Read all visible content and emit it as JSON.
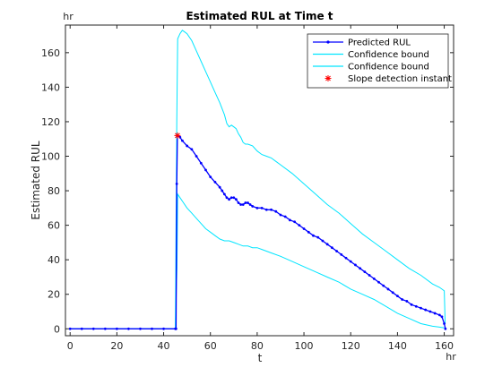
{
  "chart_data": {
    "type": "line",
    "title": "Estimated RUL at Time t",
    "xlabel": "t",
    "ylabel": "Estimated RUL",
    "x_unit": "hr",
    "y_unit": "hr",
    "xlim": [
      -2,
      164
    ],
    "ylim": [
      -4,
      176
    ],
    "xticks": [
      0,
      20,
      40,
      60,
      80,
      100,
      120,
      140,
      160
    ],
    "yticks": [
      0,
      20,
      40,
      60,
      80,
      100,
      120,
      140,
      160
    ],
    "grid": false,
    "legend_location": "top-right",
    "colors": {
      "predicted": "#0000ff",
      "bound": "#00e5ff",
      "marker": "#ff0000",
      "axes": "#262626"
    },
    "series": [
      {
        "name": "Predicted RUL",
        "style": "line-dot-markers",
        "points": [
          [
            0,
            0
          ],
          [
            5,
            0
          ],
          [
            10,
            0
          ],
          [
            15,
            0
          ],
          [
            20,
            0
          ],
          [
            25,
            0
          ],
          [
            30,
            0
          ],
          [
            35,
            0
          ],
          [
            40,
            0
          ],
          [
            45,
            0
          ],
          [
            45.3,
            0
          ],
          [
            45.6,
            84
          ],
          [
            45.9,
            112
          ],
          [
            47,
            111
          ],
          [
            48,
            109
          ],
          [
            50,
            106
          ],
          [
            52,
            104
          ],
          [
            54,
            100
          ],
          [
            56,
            96
          ],
          [
            58,
            92
          ],
          [
            60,
            88
          ],
          [
            62,
            85
          ],
          [
            64,
            82
          ],
          [
            65,
            80
          ],
          [
            66,
            78
          ],
          [
            67,
            76
          ],
          [
            68,
            75
          ],
          [
            69,
            76
          ],
          [
            70,
            76
          ],
          [
            71,
            75
          ],
          [
            72,
            73
          ],
          [
            73,
            72
          ],
          [
            74,
            72
          ],
          [
            75,
            73
          ],
          [
            76,
            73
          ],
          [
            77,
            72
          ],
          [
            78,
            71
          ],
          [
            80,
            70
          ],
          [
            82,
            70
          ],
          [
            84,
            69
          ],
          [
            86,
            69
          ],
          [
            88,
            68
          ],
          [
            90,
            66
          ],
          [
            92,
            65
          ],
          [
            94,
            63
          ],
          [
            96,
            62
          ],
          [
            98,
            60
          ],
          [
            100,
            58
          ],
          [
            102,
            56
          ],
          [
            104,
            54
          ],
          [
            106,
            53
          ],
          [
            108,
            51
          ],
          [
            110,
            49
          ],
          [
            112,
            47
          ],
          [
            114,
            45
          ],
          [
            116,
            43
          ],
          [
            118,
            41
          ],
          [
            120,
            39
          ],
          [
            122,
            37
          ],
          [
            124,
            35
          ],
          [
            126,
            33
          ],
          [
            128,
            31
          ],
          [
            130,
            29
          ],
          [
            132,
            27
          ],
          [
            134,
            25
          ],
          [
            136,
            23
          ],
          [
            138,
            21
          ],
          [
            140,
            19
          ],
          [
            142,
            17
          ],
          [
            144,
            16
          ],
          [
            146,
            14
          ],
          [
            148,
            13
          ],
          [
            150,
            12
          ],
          [
            152,
            11
          ],
          [
            154,
            10
          ],
          [
            156,
            9
          ],
          [
            158,
            8
          ],
          [
            159,
            7
          ],
          [
            160,
            3
          ],
          [
            160.5,
            0
          ]
        ]
      },
      {
        "name": "Confidence bound",
        "style": "line",
        "points": [
          [
            0,
            0
          ],
          [
            10,
            0
          ],
          [
            20,
            0
          ],
          [
            30,
            0
          ],
          [
            40,
            0
          ],
          [
            45,
            0
          ],
          [
            45.4,
            20
          ],
          [
            45.7,
            35
          ],
          [
            46,
            78
          ],
          [
            47,
            76
          ],
          [
            48,
            74
          ],
          [
            50,
            70
          ],
          [
            52,
            67
          ],
          [
            54,
            64
          ],
          [
            56,
            61
          ],
          [
            58,
            58
          ],
          [
            60,
            56
          ],
          [
            62,
            54
          ],
          [
            64,
            52
          ],
          [
            66,
            51
          ],
          [
            68,
            51
          ],
          [
            70,
            50
          ],
          [
            72,
            49
          ],
          [
            74,
            48
          ],
          [
            76,
            48
          ],
          [
            78,
            47
          ],
          [
            80,
            47
          ],
          [
            82,
            46
          ],
          [
            86,
            44
          ],
          [
            90,
            42
          ],
          [
            95,
            39
          ],
          [
            100,
            36
          ],
          [
            105,
            33
          ],
          [
            110,
            30
          ],
          [
            115,
            27
          ],
          [
            120,
            23
          ],
          [
            125,
            20
          ],
          [
            130,
            17
          ],
          [
            135,
            13
          ],
          [
            140,
            9
          ],
          [
            145,
            6
          ],
          [
            150,
            3
          ],
          [
            155,
            1.5
          ],
          [
            158,
            1
          ],
          [
            160,
            0.5
          ]
        ]
      },
      {
        "name": "Confidence bound",
        "style": "line",
        "points": [
          [
            0,
            0
          ],
          [
            10,
            0
          ],
          [
            20,
            0
          ],
          [
            30,
            0
          ],
          [
            40,
            0
          ],
          [
            45,
            0
          ],
          [
            45.3,
            60
          ],
          [
            45.6,
            120
          ],
          [
            46,
            168
          ],
          [
            47,
            171
          ],
          [
            48,
            173
          ],
          [
            49,
            172
          ],
          [
            50,
            171
          ],
          [
            52,
            167
          ],
          [
            54,
            161
          ],
          [
            56,
            155
          ],
          [
            58,
            149
          ],
          [
            60,
            143
          ],
          [
            62,
            137
          ],
          [
            64,
            131
          ],
          [
            66,
            124
          ],
          [
            67,
            119
          ],
          [
            68,
            117
          ],
          [
            69,
            118
          ],
          [
            70,
            117
          ],
          [
            71,
            116
          ],
          [
            72,
            113
          ],
          [
            73,
            111
          ],
          [
            74,
            108
          ],
          [
            75,
            107
          ],
          [
            76,
            107
          ],
          [
            78,
            106
          ],
          [
            80,
            103
          ],
          [
            82,
            101
          ],
          [
            84,
            100
          ],
          [
            86,
            99
          ],
          [
            88,
            97
          ],
          [
            90,
            95
          ],
          [
            95,
            90
          ],
          [
            100,
            84
          ],
          [
            105,
            78
          ],
          [
            110,
            72
          ],
          [
            115,
            67
          ],
          [
            120,
            61
          ],
          [
            125,
            55
          ],
          [
            130,
            50
          ],
          [
            135,
            45
          ],
          [
            140,
            40
          ],
          [
            145,
            35
          ],
          [
            150,
            31
          ],
          [
            155,
            26
          ],
          [
            158,
            24
          ],
          [
            160,
            22
          ],
          [
            160.4,
            3
          ]
        ]
      },
      {
        "name": "Slope detection instant",
        "style": "marker-star",
        "points": [
          [
            45.9,
            112
          ]
        ]
      }
    ]
  }
}
